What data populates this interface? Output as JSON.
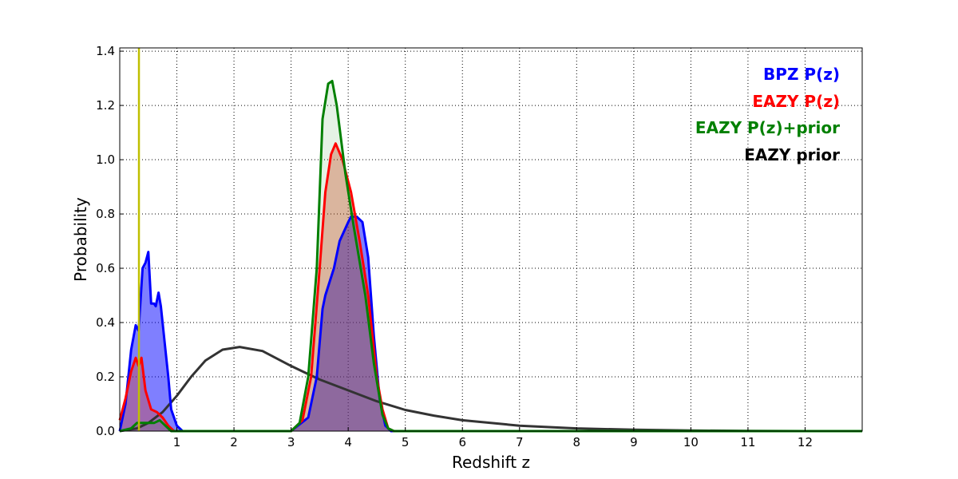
{
  "chart_data": {
    "type": "line",
    "title": "",
    "xlabel": "Redshift z",
    "ylabel": "Probability",
    "xlim": [
      0,
      13
    ],
    "ylim": [
      0,
      1.412
    ],
    "grid": true,
    "legend_placement": "top-right",
    "xticks": [
      1,
      2,
      3,
      4,
      5,
      6,
      7,
      8,
      9,
      10,
      11,
      12
    ],
    "yticks": [
      "0.0",
      "0.2",
      "0.4",
      "0.6",
      "0.8",
      "1.0",
      "1.2",
      "1.4"
    ],
    "vline": {
      "x": 0.336,
      "color": "#bfbf00"
    },
    "series": [
      {
        "name": "BPZ P(z)",
        "color": "#0000ff",
        "fill": "rgba(0,0,255,0.5)",
        "x": [
          0,
          0.1,
          0.2,
          0.28,
          0.33,
          0.4,
          0.45,
          0.5,
          0.55,
          0.6,
          0.63,
          0.68,
          0.72,
          0.8,
          0.85,
          0.9,
          1.0,
          1.1,
          3.0,
          3.3,
          3.45,
          3.55,
          3.6,
          3.75,
          3.85,
          4.0,
          4.05,
          4.15,
          4.25,
          4.35,
          4.45,
          4.55,
          4.65,
          4.75,
          13
        ],
        "y": [
          0,
          0.1,
          0.3,
          0.39,
          0.37,
          0.6,
          0.62,
          0.66,
          0.47,
          0.47,
          0.46,
          0.51,
          0.46,
          0.3,
          0.2,
          0.08,
          0.02,
          0,
          0,
          0.05,
          0.2,
          0.45,
          0.5,
          0.6,
          0.7,
          0.77,
          0.79,
          0.79,
          0.77,
          0.64,
          0.35,
          0.12,
          0.02,
          0,
          0
        ]
      },
      {
        "name": "EAZY P(z)",
        "color": "#ff0000",
        "fill": "rgba(220,60,30,0.35)",
        "x": [
          0,
          0.1,
          0.2,
          0.28,
          0.33,
          0.38,
          0.45,
          0.55,
          0.65,
          0.75,
          0.85,
          0.95,
          3.0,
          3.2,
          3.35,
          3.5,
          3.6,
          3.7,
          3.78,
          3.9,
          4.05,
          4.2,
          4.35,
          4.5,
          4.6,
          4.7,
          4.8,
          13
        ],
        "y": [
          0.04,
          0.12,
          0.22,
          0.27,
          0.24,
          0.27,
          0.15,
          0.08,
          0.07,
          0.05,
          0.02,
          0,
          0,
          0.04,
          0.2,
          0.6,
          0.88,
          1.02,
          1.06,
          1.0,
          0.88,
          0.7,
          0.5,
          0.2,
          0.08,
          0.01,
          0,
          0
        ]
      },
      {
        "name": "EAZY P(z)+prior",
        "color": "#008000",
        "fill": "rgba(0,128,0,0.1)",
        "x": [
          0,
          0.2,
          0.3,
          0.4,
          0.6,
          0.7,
          0.8,
          0.9,
          3.0,
          3.15,
          3.3,
          3.45,
          3.55,
          3.65,
          3.72,
          3.8,
          3.95,
          4.1,
          4.3,
          4.45,
          4.6,
          4.7,
          4.8,
          13
        ],
        "y": [
          0,
          0.01,
          0.03,
          0.03,
          0.03,
          0.04,
          0.02,
          0,
          0,
          0.03,
          0.2,
          0.6,
          1.15,
          1.28,
          1.29,
          1.2,
          0.95,
          0.75,
          0.5,
          0.25,
          0.06,
          0.01,
          0,
          0
        ]
      },
      {
        "name": "EAZY prior",
        "color": "#333333",
        "fill": null,
        "x": [
          0,
          0.3,
          0.5,
          0.75,
          1,
          1.25,
          1.5,
          1.8,
          2.1,
          2.5,
          3,
          3.5,
          4,
          4.5,
          5,
          5.5,
          6,
          7,
          8,
          9,
          10,
          11,
          12,
          13
        ],
        "y": [
          0,
          0.01,
          0.03,
          0.07,
          0.13,
          0.2,
          0.26,
          0.3,
          0.31,
          0.295,
          0.24,
          0.19,
          0.15,
          0.11,
          0.078,
          0.057,
          0.04,
          0.02,
          0.01,
          0.005,
          0.002,
          0.001,
          0,
          0
        ]
      }
    ]
  }
}
